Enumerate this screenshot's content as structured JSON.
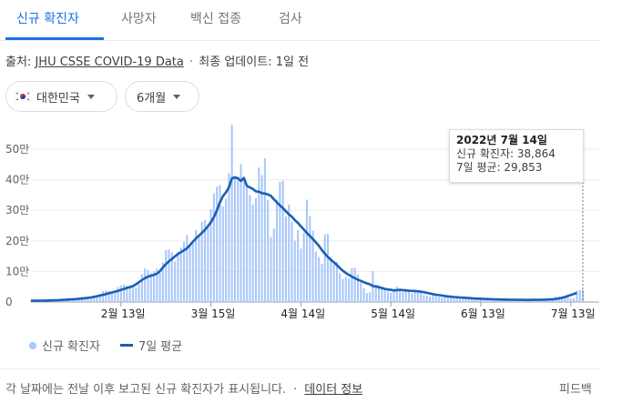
{
  "tabs": [
    {
      "label": "신규 확진자",
      "active": true
    },
    {
      "label": "사망자",
      "active": false
    },
    {
      "label": "백신 접종",
      "active": false
    },
    {
      "label": "검사",
      "active": false
    }
  ],
  "source": {
    "prefix": "출처:",
    "link": "JHU CSSE COVID-19 Data",
    "separator": "·",
    "updated": "최종 업데이트: 1일 전"
  },
  "filters": {
    "country": "대한민국",
    "range": "6개월"
  },
  "tooltip": {
    "date": "2022년 7월 14일",
    "cases": "신규 확진자: 38,864",
    "average": "7일 평균: 29,853"
  },
  "legend": {
    "bars": "신규 확진자",
    "line": "7일 평균"
  },
  "footer": {
    "note": "각 날짜에는 전날 이후 보고된 신규 확진자가 표시됩니다.",
    "separator": "·",
    "data_info": "데이터 정보",
    "feedback": "피드백"
  },
  "colors": {
    "accent": "#1a73e8",
    "bar": "#a8c7fa",
    "line": "#1a5fb4"
  },
  "chart_data": {
    "type": "bar",
    "title": "",
    "xlabel": "",
    "ylabel": "",
    "ylim": [
      0,
      560000
    ],
    "x_range": [
      "2022-01-14",
      "2022-07-14"
    ],
    "x_ticks": [
      "2월 13일",
      "3월 15일",
      "4월 14일",
      "5월 14일",
      "6월 13일",
      "7월 13일"
    ],
    "y_ticks": [
      0,
      100000,
      200000,
      300000,
      400000,
      500000
    ],
    "y_tick_labels": [
      "0",
      "10만",
      "20만",
      "30만",
      "40만",
      "50만"
    ],
    "series": [
      {
        "name": "신규 확진자",
        "type": "bar",
        "values": [
          4100,
          4500,
          4200,
          3800,
          5800,
          5800,
          5400,
          6600,
          7000,
          8500,
          8600,
          8500,
          7600,
          11000,
          13000,
          14000,
          16000,
          17000,
          17000,
          18000,
          17000,
          18000,
          22000,
          27000,
          36000,
          38000,
          36000,
          30000,
          36000,
          49000,
          54000,
          57000,
          53000,
          54000,
          49000,
          47000,
          58000,
          91000,
          110000,
          105000,
          95000,
          100000,
          109000,
          105000,
          129000,
          170000,
          171000,
          163000,
          132000,
          164000,
          177000,
          197000,
          219000,
          186000,
          191000,
          236000,
          219000,
          263000,
          268000,
          251000,
          304000,
          355000,
          377000,
          382000,
          313000,
          338000,
          421000,
          580000,
          414000,
          410000,
          451000,
          398000,
          378000,
          349000,
          319000,
          339000,
          440000,
          415000,
          470000,
          333000,
          213000,
          240000,
          335000,
          393000,
          397000,
          280000,
          319000,
          263000,
          200000,
          236000,
          175000,
          226000,
          335000,
          281000,
          233000,
          165000,
          147000,
          125000,
          221000,
          223000,
          148000,
          124000,
          131000,
          94000,
          75000,
          82000,
          77000,
          111000,
          112000,
          90000,
          63000,
          45000,
          29000,
          32000,
          101000,
          57000,
          57000,
          44000,
          42000,
          35000,
          31000,
          38000,
          51000,
          43000,
          33000,
          39000,
          33000,
          29000,
          39000,
          35000,
          34000,
          23000,
          21000,
          18000,
          25000,
          21000,
          17000,
          15000,
          16000,
          15000,
          14000,
          13000,
          12000,
          11000,
          10000,
          10000,
          12000,
          11000,
          10000,
          9000,
          8000,
          7000,
          13000,
          10000,
          9500,
          8500,
          8000,
          6000,
          6000,
          5000,
          4900,
          12000,
          10000,
          9000,
          8000,
          7000,
          4000,
          3500,
          11000,
          9800,
          9600,
          9000,
          8800,
          6500,
          5300,
          18000,
          19000,
          19000,
          19000,
          16000,
          12000,
          12000,
          37000,
          39000,
          39000
        ]
      },
      {
        "name": "7일 평균",
        "type": "line",
        "values": [
          4200,
          4300,
          4400,
          4500,
          4700,
          4800,
          5000,
          5300,
          5600,
          6000,
          6500,
          7100,
          7700,
          8200,
          8800,
          9500,
          10300,
          11300,
          12500,
          13800,
          15300,
          17000,
          18900,
          21100,
          23500,
          26000,
          28700,
          31300,
          34000,
          36700,
          39600,
          42800,
          46000,
          49100,
          52200,
          58000,
          65000,
          72000,
          78000,
          83000,
          86000,
          89000,
          93000,
          101000,
          113000,
          124000,
          133000,
          141000,
          149000,
          157000,
          163000,
          169000,
          176000,
          186000,
          197000,
          208000,
          217000,
          226000,
          236000,
          248000,
          261000,
          278000,
          300000,
          326000,
          346000,
          359000,
          375000,
          405000,
          407000,
          405000,
          396000,
          406000,
          380000,
          375000,
          370000,
          362000,
          361000,
          356000,
          355000,
          352000,
          347000,
          336000,
          326000,
          316000,
          307000,
          297000,
          287000,
          279000,
          268000,
          259000,
          248000,
          237000,
          226000,
          216000,
          206000,
          195000,
          184000,
          170000,
          158000,
          147000,
          138000,
          130000,
          121000,
          111000,
          102000,
          95000,
          89000,
          83000,
          78000,
          73000,
          69000,
          65000,
          61000,
          58000,
          52000,
          51000,
          48000,
          46000,
          43000,
          41000,
          40000,
          38000,
          39000,
          40000,
          39000,
          38000,
          37000,
          36500,
          36000,
          35000,
          34000,
          32000,
          30000,
          28000,
          26000,
          24000,
          22500,
          21000,
          19500,
          18500,
          17500,
          16500,
          15800,
          15000,
          14300,
          13600,
          13000,
          12300,
          11700,
          11200,
          10700,
          10200,
          9800,
          9400,
          9000,
          8700,
          8400,
          8100,
          7900,
          7700,
          7500,
          7300,
          7200,
          7100,
          7000,
          6950,
          6900,
          7000,
          7100,
          7200,
          7400,
          7700,
          8000,
          8500,
          9000,
          10000,
          11500,
          13500,
          16500,
          19500,
          23000,
          26500,
          29853
        ]
      }
    ],
    "legend_position": "bottom-left",
    "grid": true
  }
}
